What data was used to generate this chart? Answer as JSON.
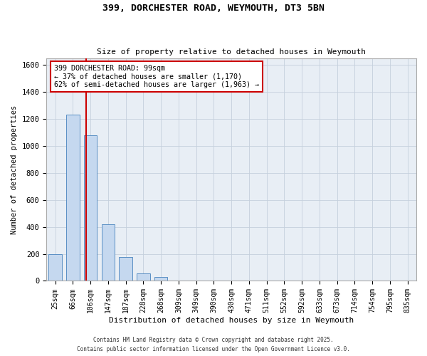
{
  "title": "399, DORCHESTER ROAD, WEYMOUTH, DT3 5BN",
  "subtitle": "Size of property relative to detached houses in Weymouth",
  "xlabel": "Distribution of detached houses by size in Weymouth",
  "ylabel": "Number of detached properties",
  "categories": [
    "25sqm",
    "66sqm",
    "106sqm",
    "147sqm",
    "187sqm",
    "228sqm",
    "268sqm",
    "309sqm",
    "349sqm",
    "390sqm",
    "430sqm",
    "471sqm",
    "511sqm",
    "552sqm",
    "592sqm",
    "633sqm",
    "673sqm",
    "714sqm",
    "754sqm",
    "795sqm",
    "835sqm"
  ],
  "bar_heights": [
    200,
    1230,
    1080,
    420,
    175,
    55,
    30,
    0,
    0,
    0,
    0,
    0,
    0,
    0,
    0,
    0,
    0,
    0,
    0,
    0,
    0
  ],
  "bar_color": "#c5d8ef",
  "bar_edge_color": "#5a8fc4",
  "red_line_x": 1.75,
  "annotation_text": "399 DORCHESTER ROAD: 99sqm\n← 37% of detached houses are smaller (1,170)\n62% of semi-detached houses are larger (1,963) →",
  "annotation_box_color": "#ffffff",
  "annotation_box_edge": "#cc0000",
  "red_line_color": "#cc0000",
  "ylim": [
    0,
    1650
  ],
  "yticks": [
    0,
    200,
    400,
    600,
    800,
    1000,
    1200,
    1400,
    1600
  ],
  "grid_color": "#c5d0dc",
  "background_color": "#e8eef5",
  "footer_line1": "Contains HM Land Registry data © Crown copyright and database right 2025.",
  "footer_line2": "Contains public sector information licensed under the Open Government Licence v3.0."
}
